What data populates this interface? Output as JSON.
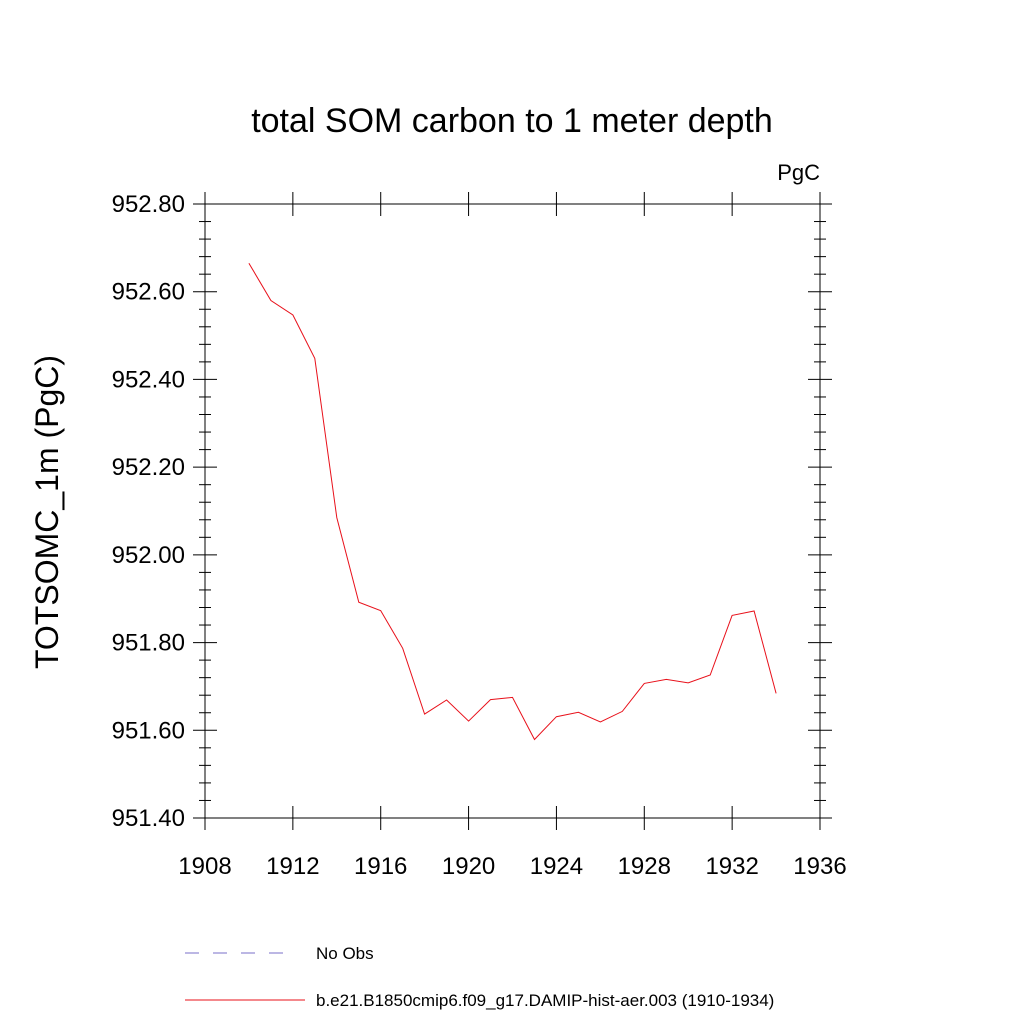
{
  "chart_data": {
    "type": "line",
    "title": "total SOM carbon to 1 meter depth",
    "units_label": "PgC",
    "xlabel": "",
    "ylabel": "TOTSOMC_1m  (PgC)",
    "xlim": [
      1908,
      1936
    ],
    "ylim": [
      951.4,
      952.8
    ],
    "x_ticks": [
      1908,
      1912,
      1916,
      1920,
      1924,
      1928,
      1932,
      1936
    ],
    "x_tick_labels": [
      "1908",
      "1912",
      "1916",
      "1920",
      "1924",
      "1928",
      "1932",
      "1936"
    ],
    "y_ticks": [
      951.4,
      951.6,
      951.8,
      952.0,
      952.2,
      952.4,
      952.6,
      952.8
    ],
    "y_tick_labels": [
      "951.40",
      "951.60",
      "951.80",
      "952.00",
      "952.20",
      "952.40",
      "952.60",
      "952.80"
    ],
    "grid": false,
    "legend_position": "bottom",
    "series": [
      {
        "name": "b.e21.B1850cmip6.f09_g17.DAMIP-hist-aer.003 (1910-1934)",
        "color": "#e8101a",
        "style": "solid",
        "x": [
          1910,
          1911,
          1912,
          1913,
          1914,
          1915,
          1916,
          1917,
          1918,
          1919,
          1920,
          1921,
          1922,
          1923,
          1924,
          1925,
          1926,
          1927,
          1928,
          1929,
          1930,
          1931,
          1932,
          1933,
          1934
        ],
        "y": [
          952.665,
          952.58,
          952.547,
          952.448,
          952.085,
          951.892,
          951.873,
          951.787,
          951.637,
          951.669,
          951.621,
          951.67,
          951.675,
          951.579,
          951.631,
          951.641,
          951.619,
          951.643,
          951.707,
          951.716,
          951.708,
          951.726,
          951.862,
          951.872,
          951.684
        ]
      }
    ],
    "legend": [
      {
        "label": "No Obs",
        "color": "#7a6fc8",
        "style": "dashed"
      },
      {
        "label": "b.e21.B1850cmip6.f09_g17.DAMIP-hist-aer.003 (1910-1934)",
        "color": "#e8101a",
        "style": "solid"
      }
    ]
  }
}
